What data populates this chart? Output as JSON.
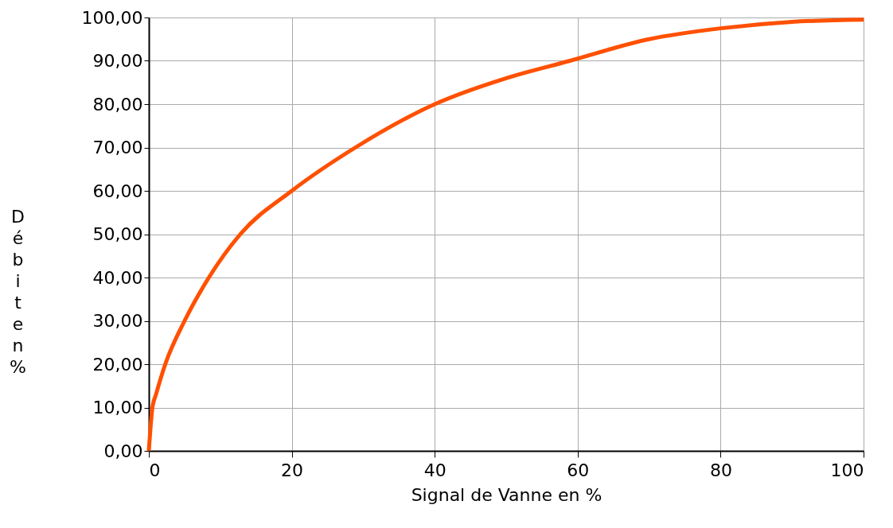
{
  "chart_data": {
    "type": "line",
    "xlabel": "Signal de Vanne en %",
    "ylabel": "Débit en %",
    "x": [
      0,
      0.5,
      1,
      2.3,
      5,
      8.4,
      12.8,
      20,
      28.9,
      40,
      50,
      58.9,
      70,
      80,
      90,
      100
    ],
    "series": [
      {
        "color": "#ff5000",
        "values": [
          0,
          10,
          13,
          20,
          30,
          40,
          50,
          60,
          70,
          80,
          86,
          90,
          95,
          97.5,
          99,
          99.5
        ]
      }
    ],
    "xlim": [
      0,
      100
    ],
    "xticks": [
      0,
      20,
      40,
      60,
      80,
      100
    ],
    "ylim": [
      0,
      100
    ],
    "yticks": [
      {
        "value": 0,
        "label": "0,00"
      },
      {
        "value": 10,
        "label": "10,00"
      },
      {
        "value": 20,
        "label": "20,00"
      },
      {
        "value": 30,
        "label": "30,00"
      },
      {
        "value": 40,
        "label": "40,00"
      },
      {
        "value": 50,
        "label": "50,00"
      },
      {
        "value": 60,
        "label": "60,00"
      },
      {
        "value": 70,
        "label": "70,00"
      },
      {
        "value": 80,
        "label": "80,00"
      },
      {
        "value": 90,
        "label": "90,00"
      },
      {
        "value": 100,
        "label": "100,00"
      }
    ],
    "grid": true,
    "marker": "none",
    "line_style": "solid"
  }
}
